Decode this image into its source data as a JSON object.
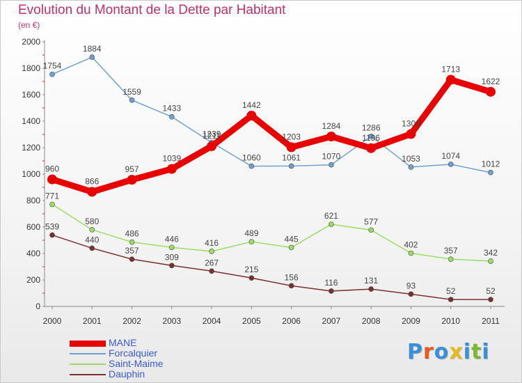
{
  "title": "Evolution du Montant de la Dette par Habitant",
  "unit": "(en €)",
  "logo": {
    "text": "Proxiti",
    "colors": [
      "#3a8fd8",
      "#e85a1e",
      "#3a8fd8",
      "#e8b81e",
      "#3a8fd8",
      "#7ab82e",
      "#3a8fd8"
    ]
  },
  "chart_data": {
    "type": "line",
    "title": "Evolution du Montant de la Dette par Habitant",
    "ylabel": "(en €)",
    "xlabel": "",
    "ylim": [
      0,
      2000
    ],
    "yticks": [
      0,
      200,
      400,
      600,
      800,
      1000,
      1200,
      1400,
      1600,
      1800,
      2000
    ],
    "grid": false,
    "legend_position": "bottom-left",
    "categories": [
      "2000",
      "2001",
      "2002",
      "2003",
      "2004",
      "2005",
      "2006",
      "2007",
      "2008",
      "2009",
      "2010",
      "2011"
    ],
    "series": [
      {
        "name": "MANE",
        "color": "#e80000",
        "values": [
          960,
          866,
          957,
          1039,
          1211,
          1442,
          1203,
          1284,
          1196,
          1303,
          1713,
          1622
        ],
        "labels": [
          "960",
          "866",
          "957",
          "1039",
          "1211",
          "1442",
          "1203",
          "1284",
          "1196",
          "1303",
          "1713",
          "1622"
        ]
      },
      {
        "name": "Forcalquier",
        "color": "#6fa0d0",
        "values": [
          1754,
          1884,
          1559,
          1433,
          1239,
          1060,
          1061,
          1070,
          1286,
          1053,
          1074,
          1012
        ],
        "labels": [
          "1754",
          "1884",
          "1559",
          "1433",
          "1239",
          "1060",
          "1061",
          "1070",
          "1286",
          "1053",
          "1074",
          "1012"
        ]
      },
      {
        "name": "Saint-Maime",
        "color": "#99dd66",
        "values": [
          771,
          580,
          486,
          446,
          416,
          489,
          445,
          621,
          577,
          402,
          357,
          342
        ],
        "labels": [
          "771",
          "580",
          "486",
          "446",
          "416",
          "489",
          "445",
          "621",
          "577",
          "402",
          "357",
          "342"
        ]
      },
      {
        "name": "Dauphin",
        "color": "#7a3030",
        "values": [
          539,
          440,
          357,
          309,
          267,
          215,
          156,
          116,
          131,
          93,
          52,
          52
        ],
        "labels": [
          "539",
          "440",
          "357",
          "309",
          "267",
          "215",
          "156",
          "116",
          "131",
          "93",
          "52",
          "52"
        ]
      }
    ]
  }
}
